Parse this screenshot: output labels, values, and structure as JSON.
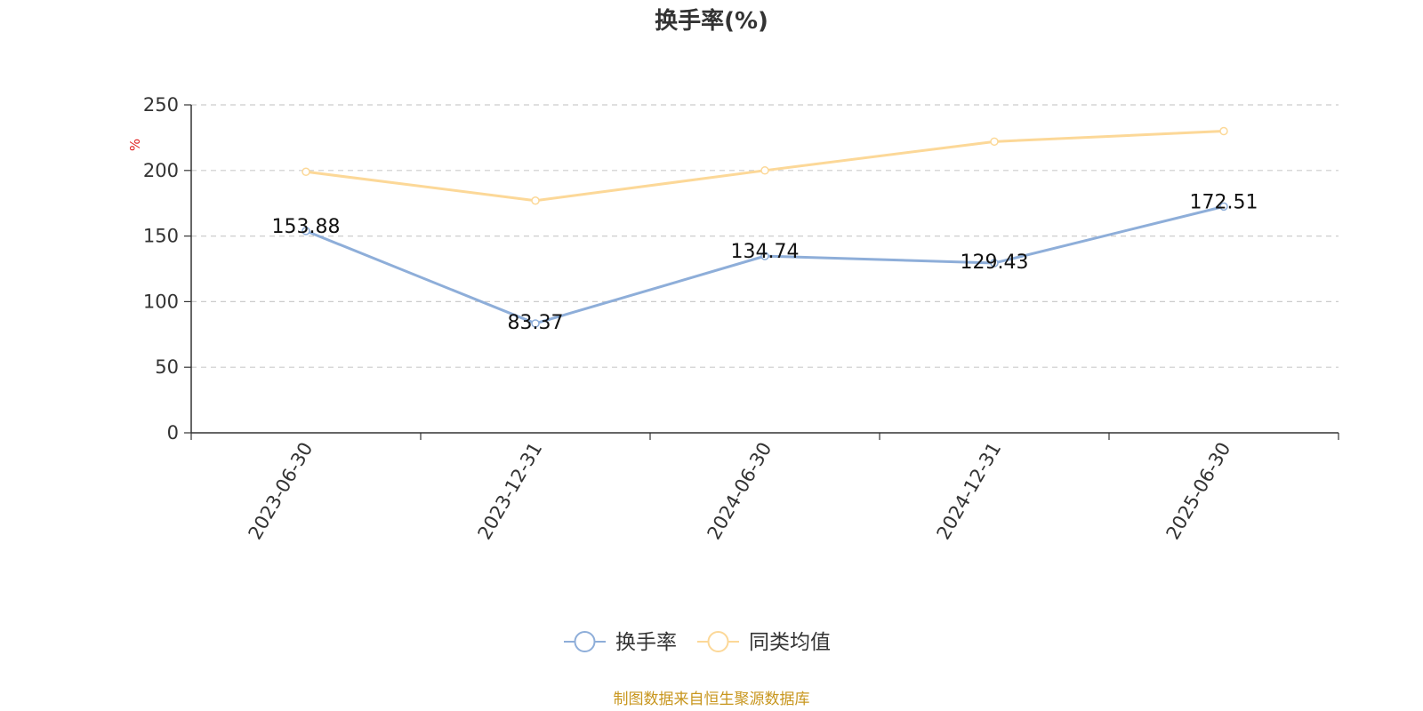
{
  "chart_data": {
    "type": "line",
    "title": "换手率(%)",
    "ylabel": "%",
    "categories": [
      "2023-06-30",
      "2023-12-31",
      "2024-06-30",
      "2024-12-31",
      "2025-06-30"
    ],
    "ylim": [
      0,
      250
    ],
    "yticks": [
      0,
      50,
      100,
      150,
      200,
      250
    ],
    "grid": true,
    "legend_position": "bottom-center",
    "series": [
      {
        "name": "换手率",
        "values": [
          153.88,
          83.37,
          134.74,
          129.43,
          172.51
        ],
        "labels": [
          "153.88",
          "83.37",
          "134.74",
          "129.43",
          "172.51"
        ],
        "color": "#8eaed9"
      },
      {
        "name": "同类均值",
        "values": [
          199,
          177,
          200,
          222,
          230
        ],
        "color": "#fcd898"
      }
    ]
  },
  "source": "制图数据来自恒生聚源数据库",
  "colors": {
    "unit": "#e02020",
    "source": "#c8961e",
    "axis": "#333333",
    "grid": "#cccccc"
  }
}
